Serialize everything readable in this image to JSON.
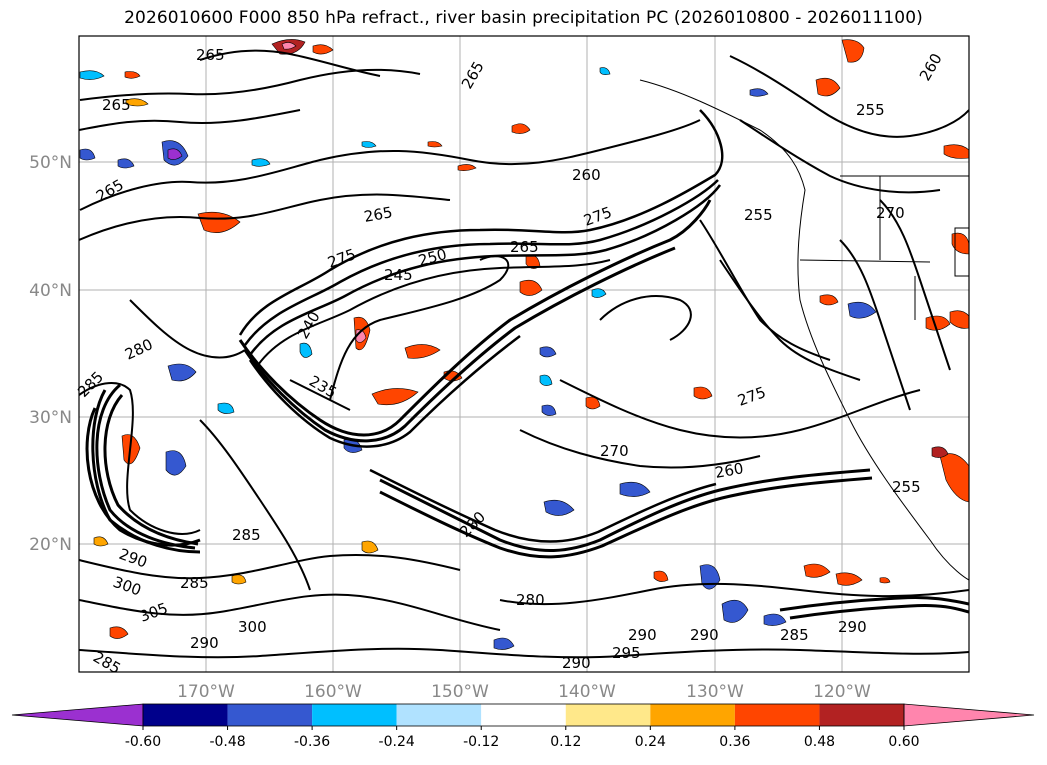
{
  "title": "2026010600 F000 850 hPa refract., river basin precipitation PC (2026010800 - 2026011100)",
  "lat_labels": [
    "50°N",
    "40°N",
    "30°N",
    "20°N"
  ],
  "lon_labels": [
    "170°W",
    "160°W",
    "150°W",
    "140°W",
    "130°W",
    "120°W"
  ],
  "contour_labels": [
    "265",
    "265",
    "265",
    "265",
    "260",
    "255",
    "265",
    "275",
    "250",
    "245",
    "265",
    "255",
    "275",
    "270",
    "260",
    "280",
    "240",
    "235",
    "275",
    "285",
    "270",
    "260",
    "255",
    "290",
    "300",
    "285",
    "280",
    "285",
    "290",
    "290",
    "295",
    "290",
    "290",
    "285",
    "280",
    "290",
    "300",
    "285",
    "305"
  ],
  "colorbar": {
    "ticks": [
      "-0.60",
      "-0.48",
      "-0.36",
      "-0.24",
      "-0.12",
      "0.12",
      "0.24",
      "0.36",
      "0.48",
      "0.60"
    ],
    "colors": {
      "under": "#9b30d0",
      "bins": [
        "#00008b",
        "#3558d0",
        "#00bfff",
        "#b0e2ff",
        "#ffffff",
        "#ffe88a",
        "#ffa500",
        "#ff4500",
        "#b22222"
      ],
      "over": "#ff85ad"
    }
  }
}
